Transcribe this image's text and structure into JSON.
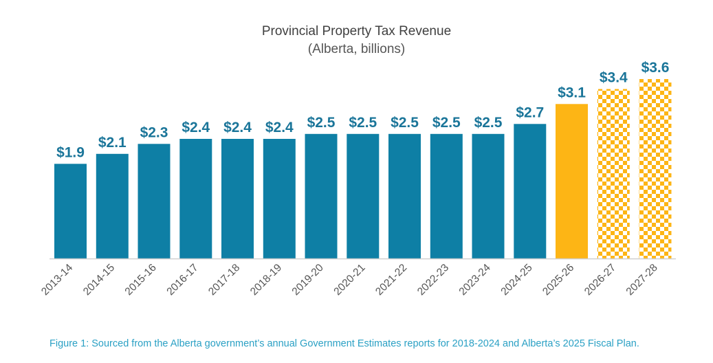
{
  "chart_data": {
    "type": "bar",
    "title": "Provincial Property Tax Revenue",
    "subtitle": "(Alberta, billions)",
    "xlabel": "",
    "ylabel": "",
    "ylim": [
      0,
      3.6
    ],
    "grid": false,
    "categories": [
      "2013-14",
      "2014-15",
      "2015-16",
      "2016-17",
      "2017-18",
      "2018-19",
      "2019-20",
      "2020-21",
      "2021-22",
      "2022-23",
      "2023-24",
      "2024-25",
      "2025-26",
      "2026-27",
      "2027-28"
    ],
    "values": [
      1.9,
      2.1,
      2.3,
      2.4,
      2.4,
      2.4,
      2.5,
      2.5,
      2.5,
      2.5,
      2.5,
      2.7,
      3.1,
      3.4,
      3.6
    ],
    "data_labels": [
      "$1.9",
      "$2.1",
      "$2.3",
      "$2.4",
      "$2.4",
      "$2.4",
      "$2.5",
      "$2.5",
      "$2.5",
      "$2.5",
      "$2.5",
      "$2.7",
      "$3.1",
      "$3.4",
      "$3.6"
    ],
    "bar_styles": [
      "actual",
      "actual",
      "actual",
      "actual",
      "actual",
      "actual",
      "actual",
      "actual",
      "actual",
      "actual",
      "actual",
      "actual",
      "estimate",
      "projection",
      "projection"
    ],
    "colors": {
      "actual": "#0e7fa5",
      "estimate": "#fdb515",
      "projection": "#fdb515",
      "data_label": "#1a7599",
      "axis": "#d0d0d0",
      "tick_label": "#555555"
    }
  },
  "caption": "Figure 1: Sourced from the Alberta government’s annual Government Estimates reports for 2018-2024 and Alberta’s 2025 Fiscal Plan."
}
